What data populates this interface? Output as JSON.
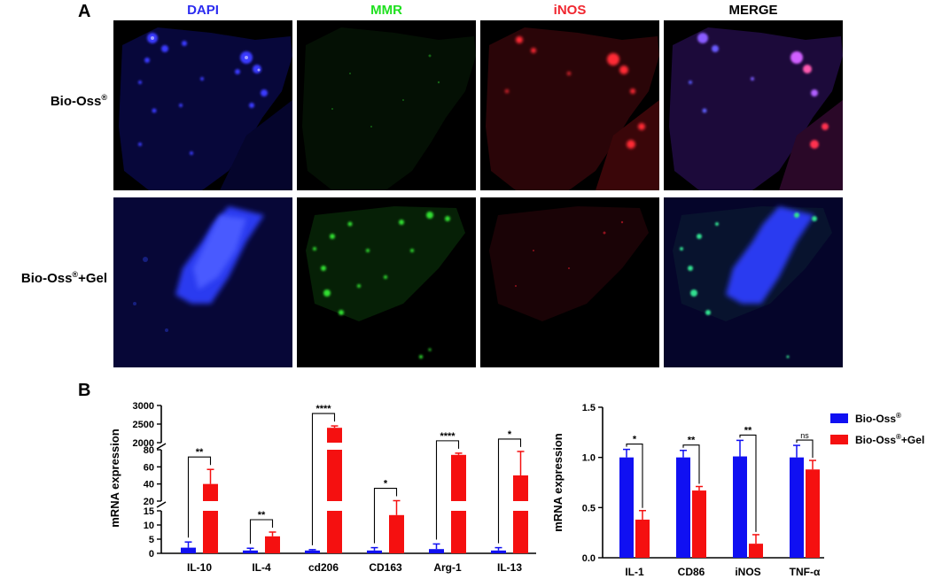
{
  "panel_a": {
    "letter": "A",
    "columns": [
      {
        "label": "DAPI",
        "color": "#2b2bf0"
      },
      {
        "label": "MMR",
        "color": "#1fe01f"
      },
      {
        "label": "iNOS",
        "color": "#f0262f"
      },
      {
        "label": "MERGE",
        "color": "#000000"
      }
    ],
    "rows": [
      {
        "label": "Bio-Oss",
        "sup": "®",
        "suffix": ""
      },
      {
        "label": "Bio-Oss",
        "sup": "®",
        "suffix": "+Gel"
      }
    ]
  },
  "panel_b": {
    "letter": "B"
  },
  "colors": {
    "bio_oss": "#1010f2",
    "bio_oss_gel": "#f51010"
  },
  "legend": {
    "items": [
      {
        "label": "Bio-Oss",
        "sup": "®",
        "suffix": "",
        "color": "#1010f2"
      },
      {
        "label": "Bio-Oss",
        "sup": "®",
        "suffix": "+Gel",
        "color": "#f51010"
      }
    ]
  },
  "chart_data": [
    {
      "type": "bar",
      "ylabel": "mRNA expression",
      "broken_axis": true,
      "y_segments": [
        {
          "range": [
            0,
            15
          ],
          "ticks": [
            "0",
            "5",
            "10",
            "15"
          ]
        },
        {
          "range": [
            20,
            80
          ],
          "ticks": [
            "20",
            "40",
            "60",
            "80"
          ]
        },
        {
          "range": [
            2000,
            3000
          ],
          "ticks": [
            "2000",
            "2500",
            "3000"
          ]
        }
      ],
      "categories": [
        "IL-10",
        "IL-4",
        "cd206",
        "CD163",
        "Arg-1",
        "IL-13"
      ],
      "series": [
        {
          "name": "Bio-Oss®",
          "values": [
            2,
            1,
            1,
            1,
            1.5,
            1
          ],
          "errors": [
            2,
            0.8,
            0.3,
            1,
            1.8,
            1
          ]
        },
        {
          "name": "Bio-Oss®+Gel",
          "values": [
            40,
            6,
            2400,
            13.5,
            74,
            50
          ],
          "errors": [
            17,
            1.5,
            50,
            7,
            2,
            28
          ]
        }
      ],
      "significance": [
        "**",
        "**",
        "****",
        "*",
        "****",
        "*"
      ]
    },
    {
      "type": "bar",
      "ylabel": "mRNA expression",
      "ylim": [
        0,
        1.5
      ],
      "yticks": [
        "0.0",
        "0.5",
        "1.0",
        "1.5"
      ],
      "categories": [
        "IL-1",
        "CD86",
        "iNOS",
        "TNF-α"
      ],
      "series": [
        {
          "name": "Bio-Oss®",
          "values": [
            1.0,
            1.0,
            1.01,
            1.0
          ],
          "errors": [
            0.08,
            0.07,
            0.16,
            0.12
          ]
        },
        {
          "name": "Bio-Oss®+Gel",
          "values": [
            0.38,
            0.67,
            0.14,
            0.88
          ],
          "errors": [
            0.09,
            0.04,
            0.09,
            0.09
          ]
        }
      ],
      "significance": [
        "*",
        "**",
        "**",
        "ns"
      ]
    }
  ]
}
